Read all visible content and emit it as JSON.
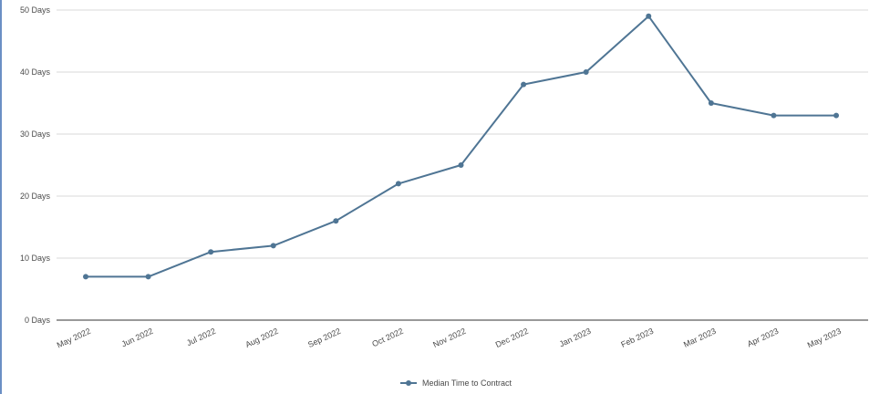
{
  "chart_data": {
    "type": "line",
    "title": "",
    "xlabel": "",
    "ylabel": "",
    "categories": [
      "May 2022",
      "Jun 2022",
      "Jul 2022",
      "Aug 2022",
      "Sep 2022",
      "Oct 2022",
      "Nov 2022",
      "Dec 2022",
      "Jan 2023",
      "Feb 2023",
      "Mar 2023",
      "Apr 2023",
      "May 2023"
    ],
    "y_tick_labels": [
      "0 Days",
      "10 Days",
      "20 Days",
      "30 Days",
      "40 Days",
      "50 Days"
    ],
    "y_ticks": [
      0,
      10,
      20,
      30,
      40,
      50
    ],
    "ylim": [
      0,
      50
    ],
    "series": [
      {
        "name": "Median Time to Contract",
        "values": [
          7,
          7,
          11,
          12,
          16,
          22,
          25,
          38,
          40,
          49,
          35,
          33,
          33
        ]
      }
    ],
    "grid": true,
    "legend_position": "bottom-center",
    "colors": {
      "series": "#4f7594",
      "grid": "#d9d9d9",
      "axis": "#333333",
      "text": "#4a4a4a",
      "accent": "#6b8fc4"
    }
  }
}
